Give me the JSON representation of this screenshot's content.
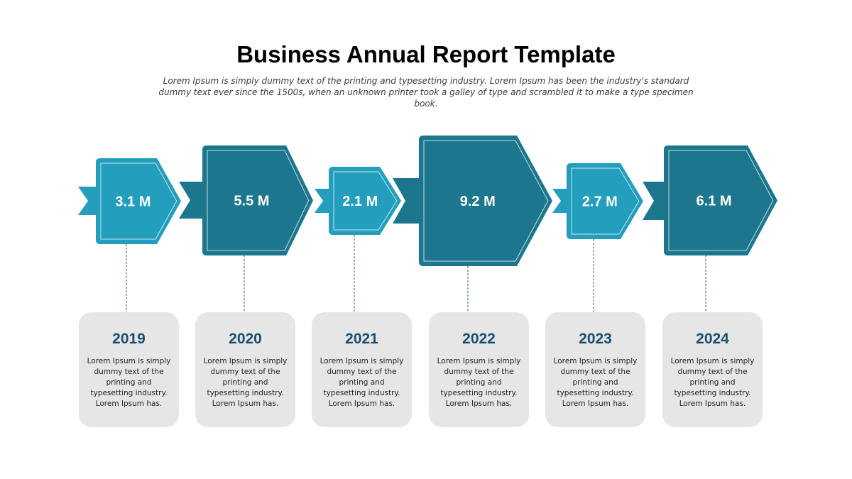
{
  "header": {
    "title": "Business Annual Report Template",
    "subtitle": "Lorem Ipsum is simply dummy text of the printing and typesetting industry. Lorem Ipsum has been the industry's standard dummy text ever since the 1500s, when an unknown printer took a galley of type and scrambled it to make a type specimen book."
  },
  "colors": {
    "light_teal": "#239ebd",
    "dark_teal": "#1b768e",
    "card_bg": "#e6e6e6",
    "year_text": "#1b4f72"
  },
  "timeline": {
    "items": [
      {
        "year": "2019",
        "value_label": "3.1 M",
        "value": 3.1,
        "description": "Lorem Ipsum is simply dummy text of the printing and typesetting industry. Lorem Ipsum has."
      },
      {
        "year": "2020",
        "value_label": "5.5 M",
        "value": 5.5,
        "description": "Lorem Ipsum is simply dummy text of the printing and typesetting industry. Lorem Ipsum has."
      },
      {
        "year": "2021",
        "value_label": "2.1 M",
        "value": 2.1,
        "description": "Lorem Ipsum is simply dummy text of the printing and typesetting industry. Lorem Ipsum has."
      },
      {
        "year": "2022",
        "value_label": "9.2 M",
        "value": 9.2,
        "description": "Lorem Ipsum is simply dummy text of the printing and typesetting industry. Lorem Ipsum has."
      },
      {
        "year": "2023",
        "value_label": "2.7 M",
        "value": 2.7,
        "description": "Lorem Ipsum is simply dummy text of the printing and typesetting industry. Lorem Ipsum has."
      },
      {
        "year": "2024",
        "value_label": "6.1 M",
        "value": 6.1,
        "description": "Lorem Ipsum is simply dummy text of the printing and typesetting industry. Lorem Ipsum has."
      }
    ]
  }
}
